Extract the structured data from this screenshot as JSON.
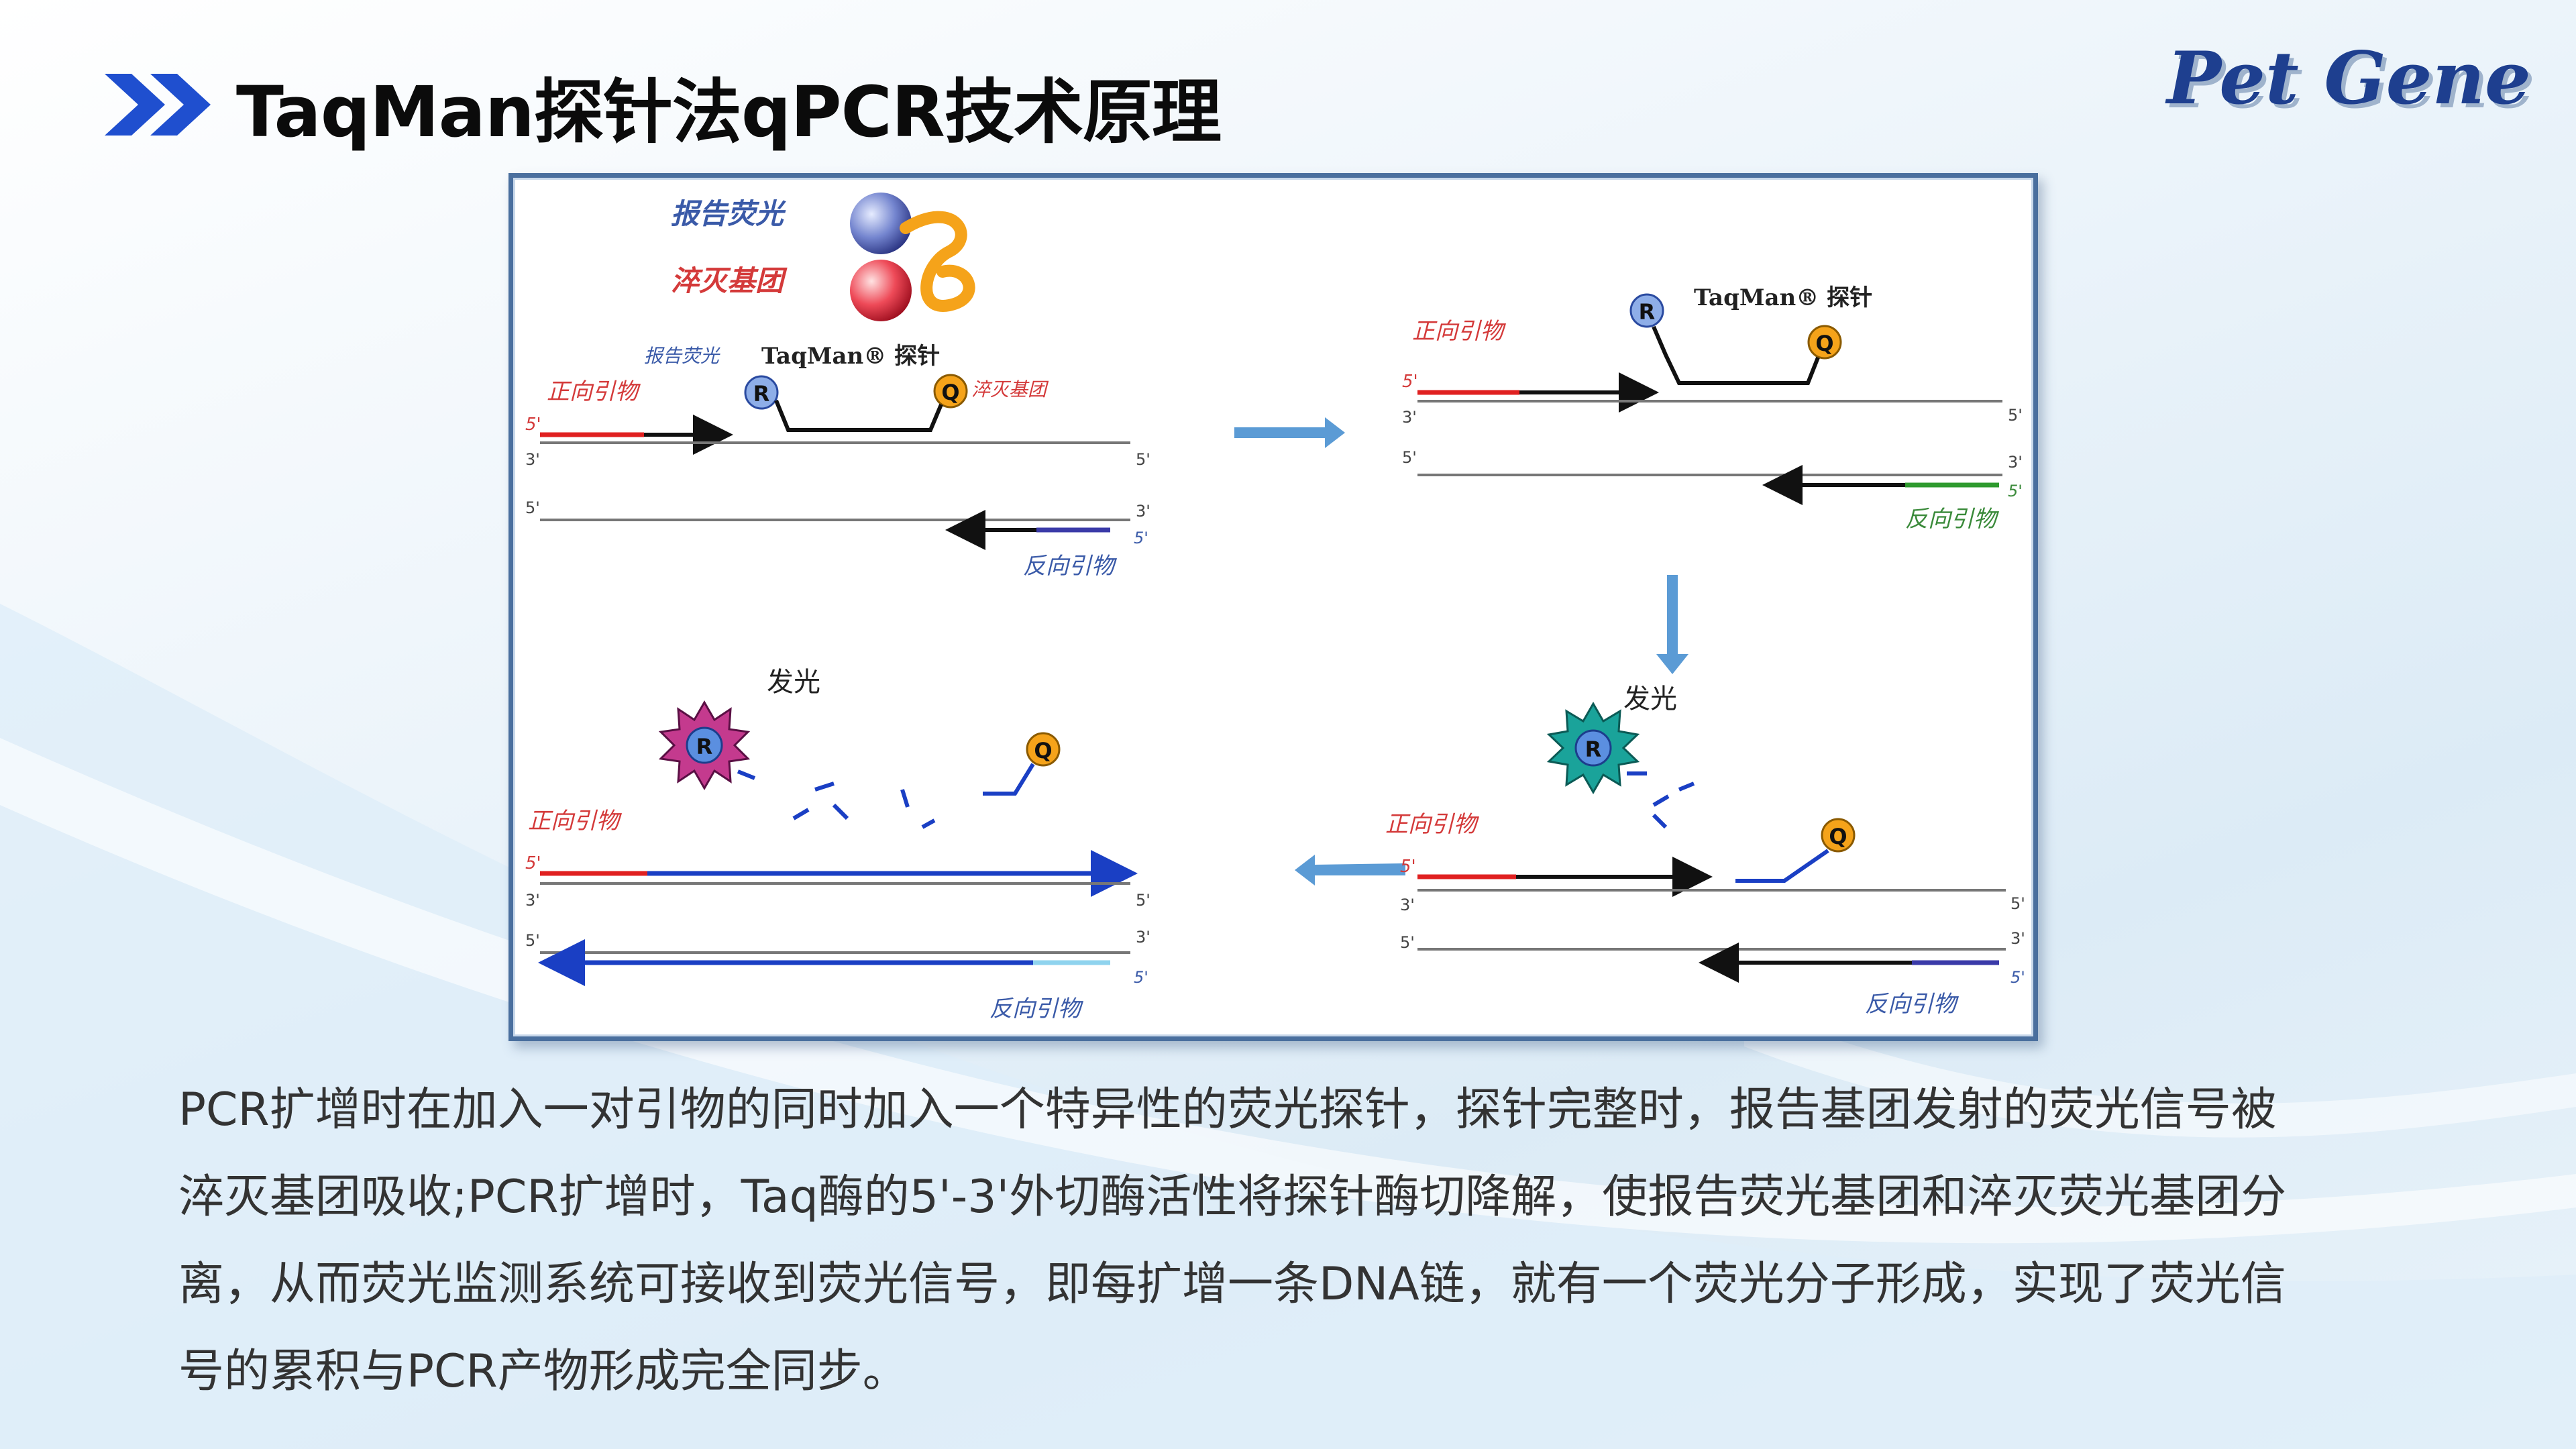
{
  "title": "TaqMan探针法qPCR技术原理",
  "logo_text": "Pet Gene",
  "legend": {
    "reporter": "报告荧光",
    "quencher": "淬灭基团"
  },
  "labels": {
    "probe": "TaqMan® 探针",
    "forward_primer": "正向引物",
    "reverse_primer": "反向引物",
    "reporter_small": "报告荧光",
    "quencher_small": "淬灭基团",
    "glow": "发光",
    "R": "R",
    "Q": "Q",
    "five_prime": "5'",
    "three_prime": "3'"
  },
  "description": [
    "PCR扩增时在加入一对引物的同时加入一个特异性的荧光探针，探针完整时，报告基团发射的荧光信号被",
    "淬灭基团吸收;PCR扩增时，Taq酶的5'-3'外切酶活性将探针酶切降解，使报告荧光基团和淬灭荧光基团分",
    "离，从而荧光监测系统可接收到荧光信号，即每扩增一条DNA链，就有一个荧光分子形成，实现了荧光信",
    "号的累积与PCR产物形成完全同步。"
  ],
  "colors": {
    "accent_blue": "#1f4fcf",
    "primer_red": "#e02020",
    "reverse_primer_blue": "#3a3aa8",
    "reverse_primer_green": "#2e9a2e",
    "extension_blue": "#1a3fc4",
    "reporter_ball": "#7b8fd8",
    "quencher_ball": "#f5a31a",
    "step_arrow": "#5b9bd5"
  }
}
